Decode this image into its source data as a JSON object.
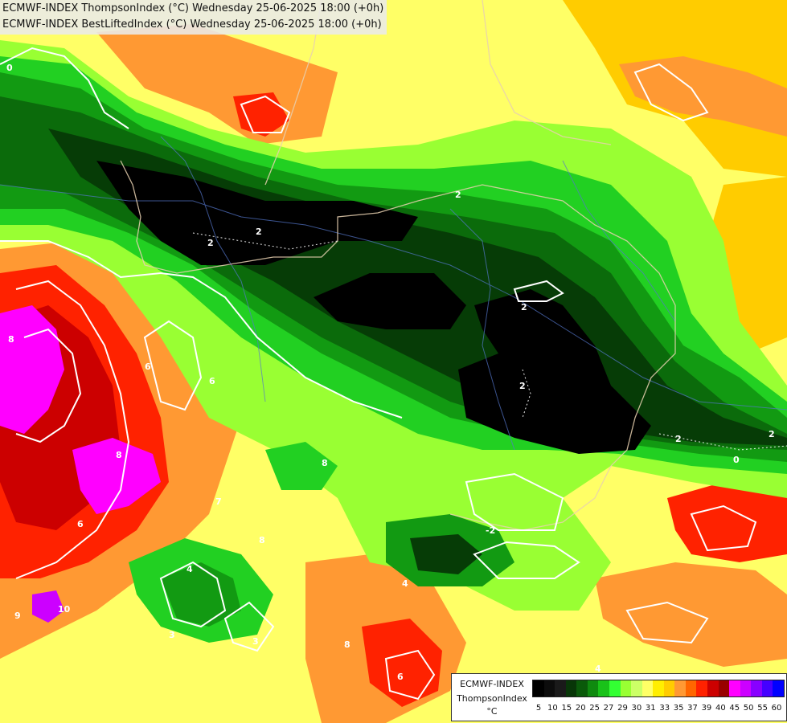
{
  "header": {
    "line1": "ECMWF-INDEX ThompsonIndex (°C) Wednesday 25-06-2025 18:00 (+0h)",
    "line2": "ECMWF-INDEX BestLiftedIndex (°C) Wednesday 25-06-2025 18:00 (+0h)"
  },
  "legend": {
    "title_line1": "ECMWF-INDEX",
    "title_line2": "ThompsonIndex",
    "unit": "°C",
    "swatch_colors": [
      "#000000",
      "#0c0c0c",
      "#1a1a1a",
      "#083608",
      "#0a5a0a",
      "#0f8a0f",
      "#19c219",
      "#33ff33",
      "#99ff33",
      "#ccff66",
      "#ffff66",
      "#ffee00",
      "#ffcc00",
      "#ff9933",
      "#ff6600",
      "#ff2200",
      "#cc0000",
      "#990000",
      "#ff00ff",
      "#cc00ff",
      "#8800ff",
      "#4400ff",
      "#0000ff"
    ],
    "tick_labels": [
      "5",
      "10",
      "15",
      "20",
      "25",
      "27",
      "29",
      "30",
      "31",
      "33",
      "35",
      "37",
      "39",
      "40",
      "45",
      "50",
      "55",
      "60"
    ]
  },
  "map": {
    "colors": {
      "black": "#000000",
      "dark_green": "#063c06",
      "green": "#0b6b0b",
      "mid_green": "#129a12",
      "bright_green": "#22d022",
      "lime": "#99ff33",
      "light_yellow": "#ffff66",
      "yellow": "#ffee00",
      "gold": "#ffcc00",
      "orange": "#ff9933",
      "dark_orange": "#ff6600",
      "red": "#ff2200",
      "dark_red": "#cc0000",
      "magenta": "#ff00ff",
      "purple": "#cc00ff",
      "contour": "#ffffff",
      "border": "#e8d0b0",
      "river": "#5577cc"
    },
    "contour_labels": [
      "0",
      "2",
      "2",
      "2",
      "2",
      "2",
      "2",
      "2",
      "0",
      "8",
      "8",
      "6",
      "6",
      "8",
      "6",
      "9",
      "6",
      "10",
      "8",
      "8",
      "4",
      "3",
      "3",
      "7",
      "-2",
      "4",
      "4"
    ]
  }
}
